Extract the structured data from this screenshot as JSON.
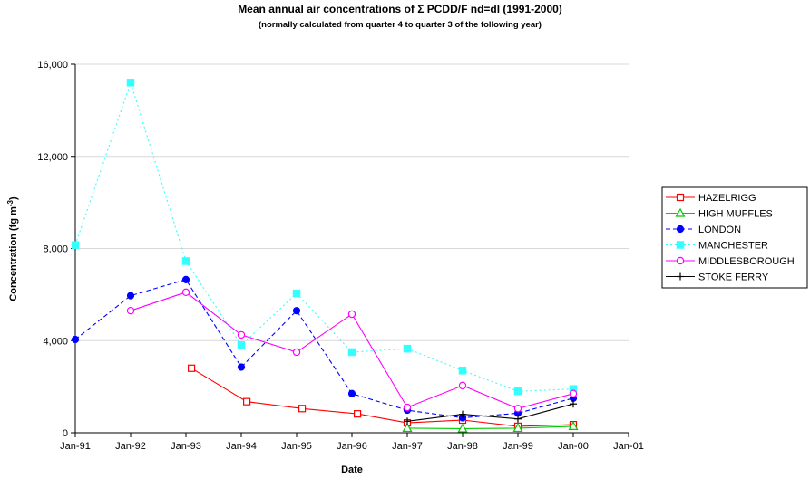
{
  "chart_data": {
    "type": "line",
    "title": "Mean annual air concentrations of Σ PCDD/F nd=dl (1991-2000)",
    "subtitle": "(normally calculated from quarter 4 to quarter 3 of the following year)",
    "xlabel": "Date",
    "ylabel": "Concentration (fg m",
    "ylabel_sup": "-3",
    "ylabel_end": ")",
    "x_ticks": [
      "Jan-91",
      "Jan-92",
      "Jan-93",
      "Jan-94",
      "Jan-95",
      "Jan-96",
      "Jan-97",
      "Jan-98",
      "Jan-99",
      "Jan-00",
      "Jan-01"
    ],
    "xlim": [
      1991.0,
      2001.0
    ],
    "y_ticks": [
      "0",
      "4,000",
      "8,000",
      "12,000",
      "16,000"
    ],
    "y_tick_values": [
      0,
      4000,
      8000,
      12000,
      16000
    ],
    "ylim": [
      0,
      16000
    ],
    "legend_position": "right",
    "series": [
      {
        "name": "HAZELRIGG",
        "color": "#ff0000",
        "line_style": "solid",
        "marker": "open-square",
        "x": [
          1993.1,
          1994.1,
          1995.1,
          1996.1,
          1997.0,
          1998.0,
          1999.0,
          2000.0
        ],
        "y": [
          2800,
          1350,
          1050,
          820,
          430,
          550,
          280,
          350
        ]
      },
      {
        "name": "HIGH MUFFLES",
        "color": "#00cc00",
        "line_style": "solid",
        "marker": "open-triangle",
        "x": [
          1997.0,
          1998.0,
          1999.0,
          2000.0
        ],
        "y": [
          200,
          180,
          200,
          280
        ]
      },
      {
        "name": "LONDON",
        "color": "#0000ff",
        "line_style": "dashed",
        "marker": "filled-circle",
        "x": [
          1991.0,
          1992.0,
          1993.0,
          1994.0,
          1995.0,
          1996.0,
          1997.0,
          1998.0,
          1999.0,
          2000.0
        ],
        "y": [
          4050,
          5950,
          6650,
          2850,
          5300,
          1700,
          980,
          650,
          850,
          1500
        ]
      },
      {
        "name": "MANCHESTER",
        "color": "#33ffff",
        "line_style": "dotted",
        "marker": "filled-square",
        "x": [
          1991.0,
          1992.0,
          1993.0,
          1994.0,
          1995.0,
          1996.0,
          1997.0,
          1998.0,
          1999.0,
          2000.0
        ],
        "y": [
          8150,
          15200,
          7450,
          3800,
          6050,
          3500,
          3650,
          2700,
          1800,
          1900
        ]
      },
      {
        "name": "MIDDLESBOROUGH",
        "color": "#ff00ff",
        "line_style": "solid",
        "marker": "open-circle",
        "x": [
          1992.0,
          1993.0,
          1994.0,
          1995.0,
          1996.0,
          1997.0,
          1998.0,
          1999.0,
          2000.0
        ],
        "y": [
          5300,
          6100,
          4250,
          3500,
          5150,
          1100,
          2050,
          1050,
          1700
        ]
      },
      {
        "name": "STOKE FERRY",
        "color": "#000000",
        "line_style": "solid",
        "marker": "plus",
        "x": [
          1997.0,
          1998.0,
          1999.0,
          2000.0
        ],
        "y": [
          500,
          800,
          600,
          1250
        ]
      }
    ]
  }
}
